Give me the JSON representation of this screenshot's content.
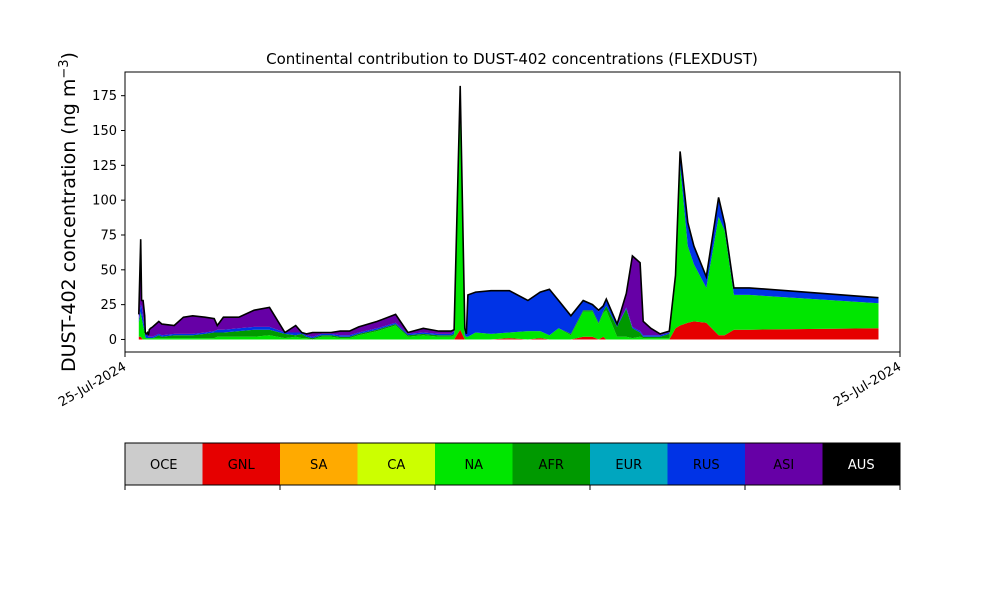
{
  "chart_data": {
    "type": "area",
    "title": "Continental contribution to DUST-402 concentrations (FLEXDUST)",
    "ylabel_main": "DUST-402 concentration (ng m",
    "ylabel_sup": "−3",
    "ylabel_close": ")",
    "xlabel": "",
    "xtick_labels": [
      "25-Jul-2024",
      "25-Jul-2024"
    ],
    "ylim": [
      -9,
      192
    ],
    "yticks": [
      0,
      25,
      50,
      75,
      100,
      125,
      150,
      175
    ],
    "grid": false,
    "x": [
      0.25,
      0.31,
      0.34,
      0.39,
      0.44,
      0.46,
      0.49,
      0.53,
      0.56,
      0.59,
      0.63,
      0.7,
      0.8,
      0.9,
      1.0,
      1.4,
      1.7,
      2.0,
      2.4,
      2.7,
      2.8,
      3.0,
      3.5,
      4.0,
      4.5,
      5.0,
      5.35,
      5.55,
      5.7,
      5.9,
      6.2,
      6.5,
      6.8,
      7.1,
      7.4,
      8.0,
      8.6,
      9.0,
      9.5,
      10.0,
      10.4,
      10.5,
      10.7,
      10.85,
      10.9,
      10.95,
      11.2,
      11.7,
      12.3,
      12.9,
      13.3,
      13.6,
      13.9,
      14.3,
      14.7,
      15.0,
      15.2,
      15.35,
      15.45,
      15.8,
      16.1,
      16.3,
      16.55,
      16.65,
      16.9,
      17.2,
      17.5,
      17.7,
      17.85,
      18.1,
      18.3,
      18.7,
      19.1,
      19.3,
      19.6,
      19.85,
      20.1,
      24.3
    ],
    "series": [
      {
        "name": "GNL",
        "color": "#e60000",
        "values": [
          2,
          2,
          1,
          0,
          0,
          0,
          0,
          0,
          0,
          0,
          0,
          0,
          0,
          0,
          0,
          0,
          0,
          0,
          0,
          0,
          0,
          0,
          0,
          0,
          0,
          0,
          0,
          0,
          0,
          0,
          0,
          0,
          0,
          0,
          0,
          0,
          0,
          0,
          0,
          0,
          0,
          0,
          7,
          0,
          0,
          0,
          0,
          0,
          1,
          0,
          1,
          0,
          0,
          0,
          2,
          2,
          0,
          2,
          0,
          0,
          0,
          0,
          0,
          0,
          0,
          0,
          0,
          8,
          10,
          12,
          13,
          12,
          3,
          3,
          7,
          7,
          7,
          8
        ]
      },
      {
        "name": "NA",
        "color": "#00e600",
        "values": [
          10,
          18,
          15,
          10,
          5,
          2,
          1,
          1,
          1,
          1,
          1,
          1,
          1,
          1,
          1,
          1,
          1,
          1,
          1,
          1,
          2,
          2,
          2,
          2,
          3,
          1,
          2,
          1,
          1,
          0,
          2,
          2,
          1,
          1,
          3,
          6,
          10,
          2,
          3,
          2,
          2,
          3,
          175,
          3,
          2,
          2,
          5,
          4,
          4,
          6,
          5,
          3,
          8,
          3,
          18,
          18,
          11,
          17,
          21,
          2,
          2,
          1,
          2,
          1,
          1,
          1,
          1,
          35,
          115,
          55,
          41,
          25,
          85,
          75,
          25,
          25,
          25,
          18
        ]
      },
      {
        "name": "AFR",
        "color": "#009900",
        "values": [
          0,
          0,
          0,
          0,
          0,
          0,
          0,
          0,
          0,
          0,
          0,
          0,
          1,
          2,
          1,
          2,
          2,
          2,
          3,
          4,
          3,
          3,
          4,
          5,
          4,
          3,
          1,
          3,
          1,
          1,
          1,
          1,
          1,
          1,
          1,
          1,
          1,
          1,
          1,
          1,
          1,
          1,
          0,
          0,
          0,
          0,
          0,
          0,
          0,
          0,
          0,
          0,
          0,
          1,
          1,
          1,
          1,
          1,
          3,
          7,
          20,
          7,
          3,
          1,
          1,
          1,
          3,
          0,
          0,
          0,
          0,
          0,
          0,
          0,
          0,
          0,
          0,
          0
        ]
      },
      {
        "name": "RUS",
        "color": "#0033e6",
        "values": [
          2,
          5,
          8,
          6,
          2,
          2,
          2,
          3,
          1,
          1,
          1,
          1,
          1,
          1,
          1,
          1,
          1,
          1,
          1,
          1,
          2,
          2,
          2,
          2,
          2,
          1,
          2,
          1,
          1,
          1,
          1,
          1,
          1,
          1,
          1,
          1,
          1,
          1,
          1,
          1,
          1,
          2,
          0,
          5,
          2,
          30,
          29,
          31,
          30,
          22,
          28,
          33,
          20,
          13,
          7,
          4,
          8,
          4,
          5,
          1,
          1,
          1,
          1,
          1,
          1,
          1,
          1,
          3,
          10,
          17,
          13,
          8,
          12,
          5,
          5,
          5,
          5,
          4
        ]
      },
      {
        "name": "ASI",
        "color": "#6600a6",
        "values": [
          4,
          47,
          4,
          12,
          10,
          1,
          1,
          1,
          1,
          5,
          6,
          7,
          8,
          9,
          8,
          6,
          12,
          13,
          11,
          9,
          3,
          9,
          8,
          12,
          14,
          0,
          5,
          0,
          1,
          3,
          1,
          1,
          3,
          3,
          4,
          5,
          6,
          1,
          3,
          2,
          2,
          1,
          0,
          0,
          0,
          0,
          0,
          0,
          0,
          0,
          0,
          0,
          0,
          0,
          0,
          0,
          1,
          0,
          0,
          1,
          10,
          51,
          49,
          10,
          5,
          1,
          1,
          0,
          0,
          0,
          0,
          0,
          2,
          0,
          0,
          0,
          0,
          0
        ]
      },
      {
        "name": "AUS",
        "color": "#000000",
        "values": [
          0,
          0,
          0,
          0,
          0,
          0,
          0,
          0,
          0,
          0,
          0,
          0,
          0,
          0,
          0,
          0,
          0,
          0,
          0,
          0,
          0,
          0,
          0,
          0,
          0,
          0,
          0,
          0,
          0,
          0,
          0,
          0,
          0,
          0,
          0,
          0,
          0,
          0,
          0,
          0,
          0,
          0,
          0,
          0,
          0,
          0,
          0,
          0,
          0,
          0,
          0,
          0,
          0,
          0,
          0,
          0,
          0,
          0,
          0,
          0,
          0,
          0,
          0,
          0,
          0,
          0,
          0,
          0,
          0,
          0,
          0,
          0,
          0,
          0,
          0,
          0,
          0,
          0
        ]
      }
    ],
    "xlim": [
      -0.2,
      25.0
    ],
    "legend": {
      "placement": "below",
      "entries": [
        {
          "name": "OCE",
          "color": "#cccccc",
          "text_color": "#000000"
        },
        {
          "name": "GNL",
          "color": "#e60000",
          "text_color": "#000000"
        },
        {
          "name": "SA",
          "color": "#ffaa00",
          "text_color": "#000000"
        },
        {
          "name": "CA",
          "color": "#ccff00",
          "text_color": "#000000"
        },
        {
          "name": "NA",
          "color": "#00e600",
          "text_color": "#000000"
        },
        {
          "name": "AFR",
          "color": "#009900",
          "text_color": "#000000"
        },
        {
          "name": "EUR",
          "color": "#00a6bf",
          "text_color": "#000000"
        },
        {
          "name": "RUS",
          "color": "#0033e6",
          "text_color": "#000000"
        },
        {
          "name": "ASI",
          "color": "#6600a6",
          "text_color": "#000000"
        },
        {
          "name": "AUS",
          "color": "#000000",
          "text_color": "#ffffff"
        }
      ]
    }
  }
}
